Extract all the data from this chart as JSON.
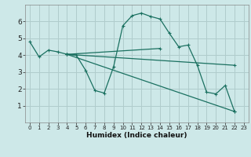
{
  "title": "",
  "xlabel": "Humidex (Indice chaleur)",
  "bg_color": "#cde8e8",
  "grid_color": "#b0cccc",
  "line_color": "#1a7060",
  "xlim": [
    -0.5,
    23.5
  ],
  "ylim": [
    0,
    7
  ],
  "yticks": [
    1,
    2,
    3,
    4,
    5,
    6
  ],
  "xticks": [
    0,
    1,
    2,
    3,
    4,
    5,
    6,
    7,
    8,
    9,
    10,
    11,
    12,
    13,
    14,
    15,
    16,
    17,
    18,
    19,
    20,
    21,
    22,
    23
  ],
  "line_main": {
    "x": [
      0,
      1,
      2,
      3,
      4,
      5,
      6,
      7,
      8,
      9,
      10,
      11,
      12,
      13,
      14,
      15,
      16,
      17,
      18,
      19,
      20,
      21,
      22
    ],
    "y": [
      4.8,
      3.9,
      4.3,
      4.2,
      4.05,
      4.0,
      3.1,
      1.9,
      1.75,
      3.3,
      5.75,
      6.35,
      6.5,
      6.3,
      6.15,
      5.3,
      4.5,
      4.6,
      3.4,
      1.8,
      1.7,
      2.2,
      0.65
    ]
  },
  "line_trend1": {
    "x": [
      4,
      22
    ],
    "y": [
      4.05,
      0.65
    ]
  },
  "line_trend2": {
    "x": [
      4,
      22
    ],
    "y": [
      4.05,
      3.4
    ]
  },
  "line_trend3": {
    "x": [
      4,
      14
    ],
    "y": [
      4.05,
      4.4
    ]
  }
}
